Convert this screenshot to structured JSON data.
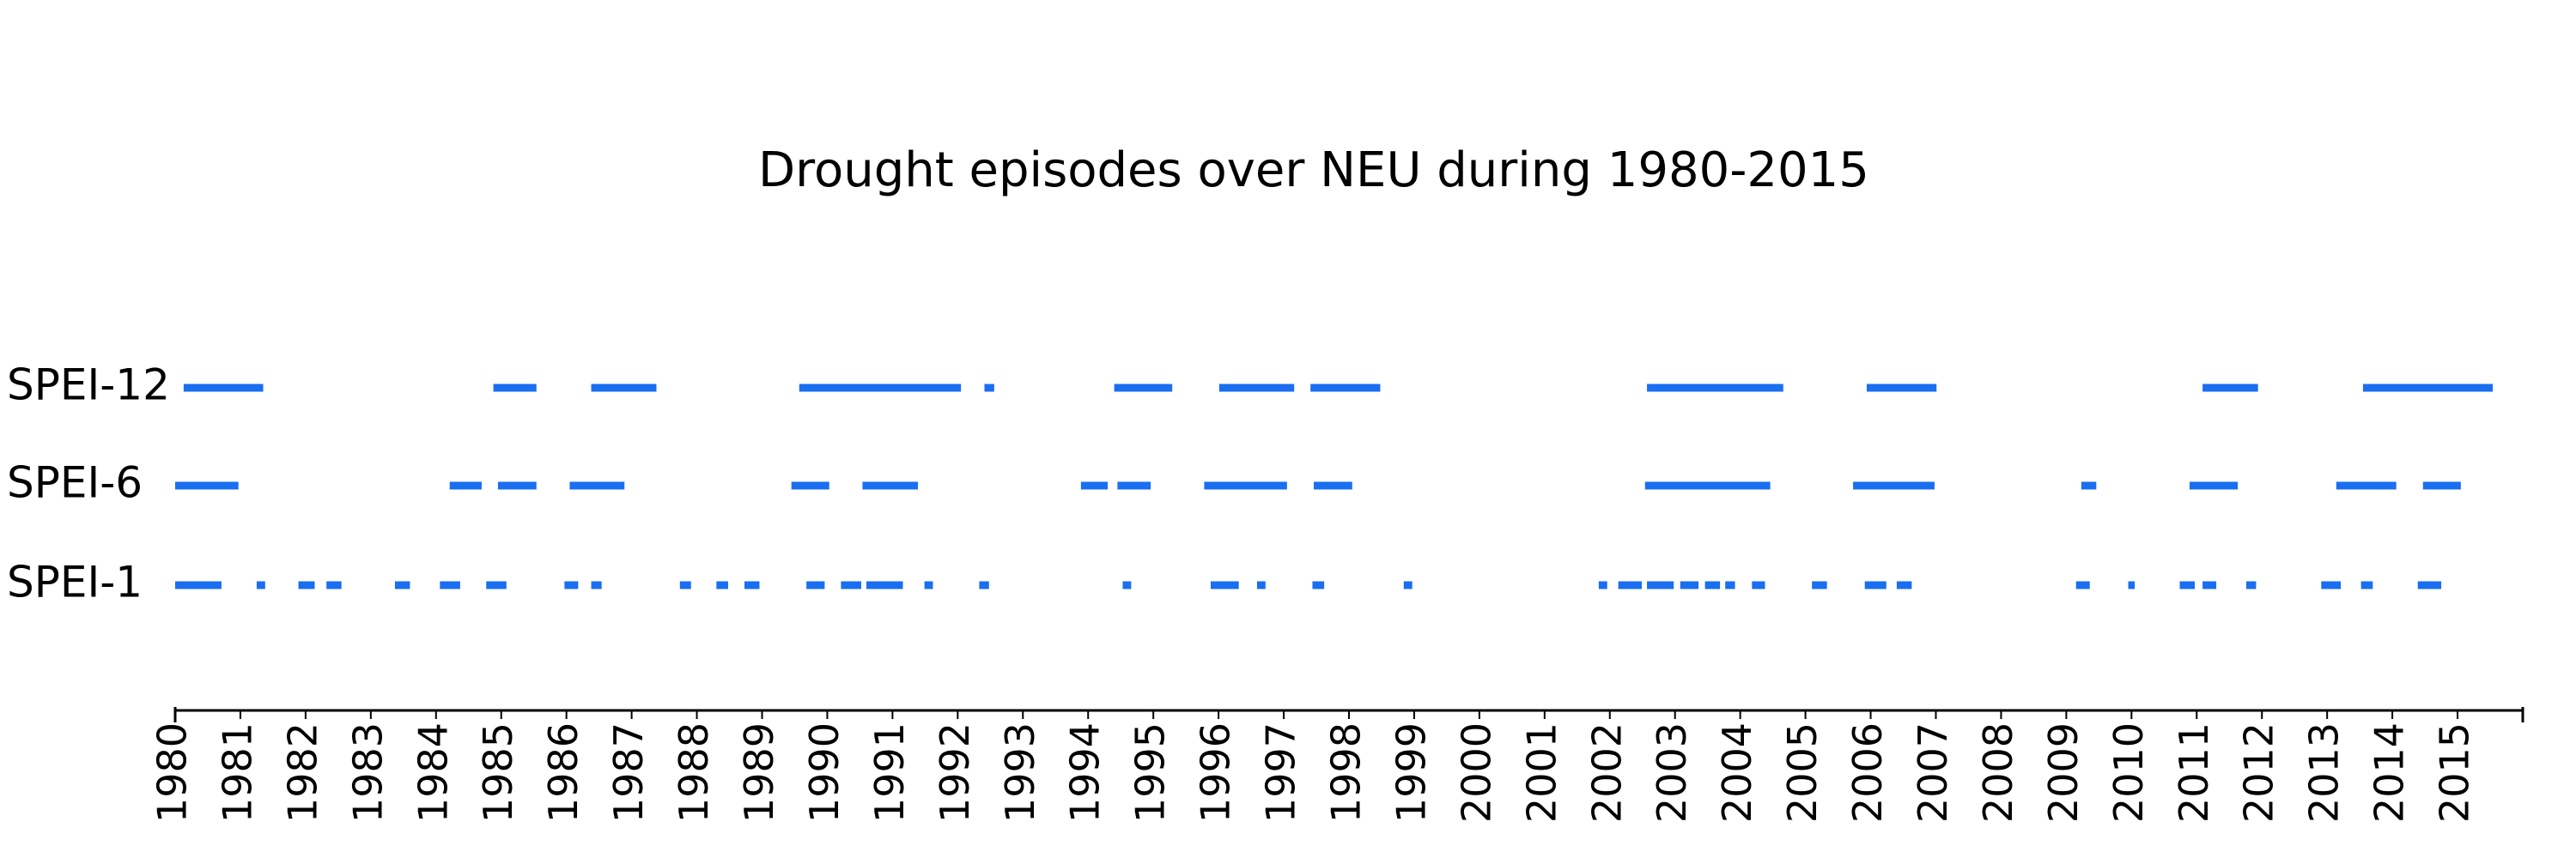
{
  "chart_data": {
    "type": "timeline",
    "title": "Drought episodes over NEU during 1980-2015",
    "xlim": [
      1980,
      2016
    ],
    "xticks": [
      1980,
      1981,
      1982,
      1983,
      1984,
      1985,
      1986,
      1987,
      1988,
      1989,
      1990,
      1991,
      1992,
      1993,
      1994,
      1995,
      1996,
      1997,
      1998,
      1999,
      2000,
      2001,
      2002,
      2003,
      2004,
      2005,
      2006,
      2007,
      2008,
      2009,
      2010,
      2011,
      2012,
      2013,
      2014,
      2015
    ],
    "series": [
      {
        "name": "SPEI-12",
        "color": "#1a6ef0",
        "values": [
          [
            1980.13,
            1981.35
          ],
          [
            1984.88,
            1985.54
          ],
          [
            1986.38,
            1987.38
          ],
          [
            1989.57,
            1992.05
          ],
          [
            1992.41,
            1992.56
          ],
          [
            1994.4,
            1995.29
          ],
          [
            1996.01,
            1997.16
          ],
          [
            1997.41,
            1998.48
          ],
          [
            2002.57,
            2004.66
          ],
          [
            2005.94,
            2007.01
          ],
          [
            2011.09,
            2011.94
          ],
          [
            2013.55,
            2015.54
          ]
        ]
      },
      {
        "name": "SPEI-6",
        "color": "#1a6ef0",
        "values": [
          [
            1980.0,
            1980.97
          ],
          [
            1984.21,
            1984.7
          ],
          [
            1984.95,
            1985.54
          ],
          [
            1986.05,
            1986.89
          ],
          [
            1989.45,
            1990.03
          ],
          [
            1990.54,
            1991.39
          ],
          [
            1993.89,
            1994.3
          ],
          [
            1994.45,
            1994.96
          ],
          [
            1995.78,
            1997.05
          ],
          [
            1997.46,
            1998.05
          ],
          [
            2002.54,
            2004.46
          ],
          [
            2005.73,
            2006.98
          ],
          [
            2009.23,
            2009.46
          ],
          [
            2010.89,
            2011.63
          ],
          [
            2013.14,
            2014.06
          ],
          [
            2014.47,
            2015.05
          ]
        ]
      },
      {
        "name": "SPEI-1",
        "color": "#1a6ef0",
        "values": [
          [
            1980.0,
            1980.71
          ],
          [
            1981.25,
            1981.38
          ],
          [
            1981.89,
            1982.14
          ],
          [
            1982.32,
            1982.55
          ],
          [
            1983.37,
            1983.6
          ],
          [
            1984.06,
            1984.37
          ],
          [
            1984.77,
            1985.08
          ],
          [
            1985.97,
            1986.18
          ],
          [
            1986.38,
            1986.54
          ],
          [
            1987.74,
            1987.91
          ],
          [
            1988.3,
            1988.48
          ],
          [
            1988.73,
            1988.96
          ],
          [
            1989.68,
            1989.96
          ],
          [
            1990.21,
            1990.52
          ],
          [
            1990.6,
            1991.16
          ],
          [
            1991.49,
            1991.62
          ],
          [
            1992.33,
            1992.48
          ],
          [
            1994.53,
            1994.66
          ],
          [
            1995.88,
            1996.31
          ],
          [
            1996.59,
            1996.72
          ],
          [
            1997.44,
            1997.62
          ],
          [
            1998.84,
            1998.97
          ],
          [
            2001.83,
            2001.96
          ],
          [
            2002.13,
            2002.49
          ],
          [
            2002.57,
            2002.98
          ],
          [
            2003.08,
            2003.36
          ],
          [
            2003.46,
            2003.69
          ],
          [
            2003.77,
            2003.92
          ],
          [
            2004.18,
            2004.38
          ],
          [
            2005.1,
            2005.33
          ],
          [
            2005.91,
            2006.24
          ],
          [
            2006.4,
            2006.63
          ],
          [
            2009.15,
            2009.36
          ],
          [
            2009.95,
            2010.05
          ],
          [
            2010.74,
            2010.97
          ],
          [
            2011.09,
            2011.3
          ],
          [
            2011.76,
            2011.91
          ],
          [
            2012.91,
            2013.21
          ],
          [
            2013.52,
            2013.7
          ],
          [
            2014.39,
            2014.75
          ]
        ]
      }
    ]
  }
}
